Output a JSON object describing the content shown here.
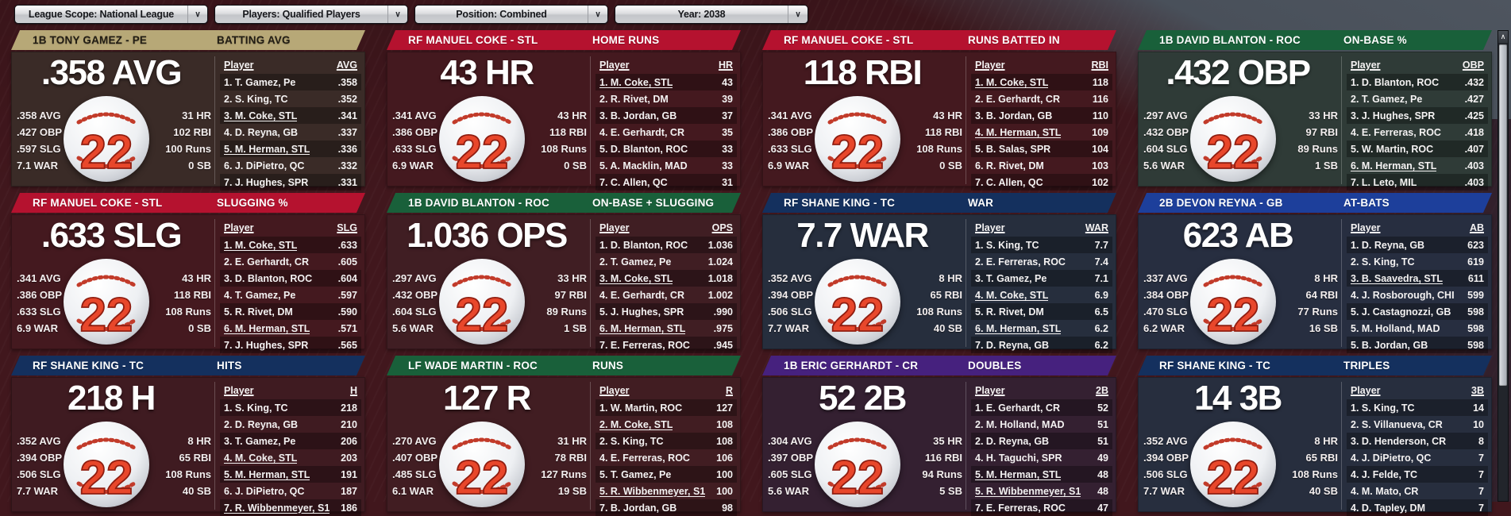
{
  "filters": [
    {
      "label": "League Scope: National League"
    },
    {
      "label": "Players: Qualified Players"
    },
    {
      "label": "Position: Combined"
    },
    {
      "label": "Year: 2038"
    }
  ],
  "icons": {
    "dropdown_chevron": "∨",
    "scroll_up": "∧"
  },
  "panels": [
    {
      "player": "1B TONY GAMEZ - PE",
      "category": "BATTING AVG",
      "big": ".358 AVG",
      "jersey": "22",
      "left_stats": [
        ".358 AVG",
        ".427 OBP",
        ".597 SLG",
        "7.1 WAR"
      ],
      "right_stats": [
        "31 HR",
        "102 RBI",
        "100 Runs",
        "0 SB"
      ],
      "colors": {
        "header": "#b7a877",
        "header_text": "#211c13",
        "body": "#3a2b27"
      },
      "table": {
        "player_header": "Player",
        "value_header": "AVG",
        "rows": [
          {
            "name": "1. T. Gamez, Pe",
            "value": ".358",
            "u": false
          },
          {
            "name": "2. S. King, TC",
            "value": ".352",
            "u": false
          },
          {
            "name": "3. M. Coke, STL",
            "value": ".341",
            "u": true
          },
          {
            "name": "4. D. Reyna, GB",
            "value": ".337",
            "u": false
          },
          {
            "name": "5. M. Herman, STL",
            "value": ".336",
            "u": true
          },
          {
            "name": "6. J. DiPietro, QC",
            "value": ".332",
            "u": false
          },
          {
            "name": "7. J. Hughes, SPR",
            "value": ".331",
            "u": false
          }
        ]
      }
    },
    {
      "player": "RF MANUEL COKE - STL",
      "category": "HOME RUNS",
      "big": "43 HR",
      "jersey": "22",
      "left_stats": [
        ".341 AVG",
        ".386 OBP",
        ".633 SLG",
        "6.9 WAR"
      ],
      "right_stats": [
        "43 HR",
        "118 RBI",
        "108 Runs",
        "0 SB"
      ],
      "colors": {
        "header": "#b5122f",
        "header_text": "#ffffff",
        "body": "#44191f"
      },
      "table": {
        "player_header": "Player",
        "value_header": "HR",
        "rows": [
          {
            "name": "1. M. Coke, STL",
            "value": "43",
            "u": true
          },
          {
            "name": "2. R. Rivet, DM",
            "value": "39",
            "u": false
          },
          {
            "name": "3. B. Jordan, GB",
            "value": "37",
            "u": false
          },
          {
            "name": "4. E. Gerhardt, CR",
            "value": "35",
            "u": false
          },
          {
            "name": "5. D. Blanton, ROC",
            "value": "33",
            "u": false
          },
          {
            "name": "5. A. Macklin, MAD",
            "value": "33",
            "u": false
          },
          {
            "name": "7. C. Allen, QC",
            "value": "31",
            "u": false
          }
        ]
      }
    },
    {
      "player": "RF MANUEL COKE - STL",
      "category": "RUNS BATTED IN",
      "big": "118 RBI",
      "jersey": "22",
      "left_stats": [
        ".341 AVG",
        ".386 OBP",
        ".633 SLG",
        "6.9 WAR"
      ],
      "right_stats": [
        "43 HR",
        "118 RBI",
        "108 Runs",
        "0 SB"
      ],
      "colors": {
        "header": "#b5122f",
        "header_text": "#ffffff",
        "body": "#44191f"
      },
      "table": {
        "player_header": "Player",
        "value_header": "RBI",
        "rows": [
          {
            "name": "1. M. Coke, STL",
            "value": "118",
            "u": true
          },
          {
            "name": "2. E. Gerhardt, CR",
            "value": "116",
            "u": false
          },
          {
            "name": "3. B. Jordan, GB",
            "value": "110",
            "u": false
          },
          {
            "name": "4. M. Herman, STL",
            "value": "109",
            "u": true
          },
          {
            "name": "5. B. Salas, SPR",
            "value": "104",
            "u": false
          },
          {
            "name": "6. R. Rivet, DM",
            "value": "103",
            "u": false
          },
          {
            "name": "7. C. Allen, QC",
            "value": "102",
            "u": false
          }
        ]
      }
    },
    {
      "player": "1B DAVID BLANTON - ROC",
      "category": "ON-BASE %",
      "big": ".432 OBP",
      "jersey": "22",
      "left_stats": [
        ".297 AVG",
        ".432 OBP",
        ".604 SLG",
        "5.6 WAR"
      ],
      "right_stats": [
        "33 HR",
        "97 RBI",
        "89 Runs",
        "1 SB"
      ],
      "colors": {
        "header": "#19603a",
        "header_text": "#ffffff",
        "body": "#2f3b37"
      },
      "table": {
        "player_header": "Player",
        "value_header": "OBP",
        "rows": [
          {
            "name": "1. D. Blanton, ROC",
            "value": ".432",
            "u": false
          },
          {
            "name": "2. T. Gamez, Pe",
            "value": ".427",
            "u": false
          },
          {
            "name": "3. J. Hughes, SPR",
            "value": ".425",
            "u": false
          },
          {
            "name": "4. E. Ferreras, ROC",
            "value": ".418",
            "u": false
          },
          {
            "name": "5. W. Martin, ROC",
            "value": ".407",
            "u": false
          },
          {
            "name": "6. M. Herman, STL",
            "value": ".403",
            "u": true
          },
          {
            "name": "7. L. Leto, MIL",
            "value": ".403",
            "u": false
          }
        ]
      }
    },
    {
      "player": "RF MANUEL COKE - STL",
      "category": "SLUGGING %",
      "big": ".633 SLG",
      "jersey": "22",
      "left_stats": [
        ".341 AVG",
        ".386 OBP",
        ".633 SLG",
        "6.9 WAR"
      ],
      "right_stats": [
        "43 HR",
        "118 RBI",
        "108 Runs",
        "0 SB"
      ],
      "colors": {
        "header": "#b5122f",
        "header_text": "#ffffff",
        "body": "#44191f"
      },
      "table": {
        "player_header": "Player",
        "value_header": "SLG",
        "rows": [
          {
            "name": "1. M. Coke, STL",
            "value": ".633",
            "u": true
          },
          {
            "name": "2. E. Gerhardt, CR",
            "value": ".605",
            "u": false
          },
          {
            "name": "3. D. Blanton, ROC",
            "value": ".604",
            "u": false
          },
          {
            "name": "4. T. Gamez, Pe",
            "value": ".597",
            "u": false
          },
          {
            "name": "5. R. Rivet, DM",
            "value": ".590",
            "u": false
          },
          {
            "name": "6. M. Herman, STL",
            "value": ".571",
            "u": true
          },
          {
            "name": "7. J. Hughes, SPR",
            "value": ".565",
            "u": false
          }
        ]
      }
    },
    {
      "player": "1B DAVID BLANTON - ROC",
      "category": "ON-BASE + SLUGGING",
      "big": "1.036 OPS",
      "jersey": "22",
      "left_stats": [
        ".297 AVG",
        ".432 OBP",
        ".604 SLG",
        "5.6 WAR"
      ],
      "right_stats": [
        "33 HR",
        "97 RBI",
        "89 Runs",
        "1 SB"
      ],
      "colors": {
        "header": "#19603a",
        "header_text": "#ffffff",
        "body": "#401e23"
      },
      "table": {
        "player_header": "Player",
        "value_header": "OPS",
        "rows": [
          {
            "name": "1. D. Blanton, ROC",
            "value": "1.036",
            "u": false
          },
          {
            "name": "2. T. Gamez, Pe",
            "value": "1.024",
            "u": false
          },
          {
            "name": "3. M. Coke, STL",
            "value": "1.018",
            "u": true
          },
          {
            "name": "4. E. Gerhardt, CR",
            "value": "1.002",
            "u": false
          },
          {
            "name": "5. J. Hughes, SPR",
            "value": ".990",
            "u": false
          },
          {
            "name": "6. M. Herman, STL",
            "value": ".975",
            "u": true
          },
          {
            "name": "7. E. Ferreras, ROC",
            "value": ".945",
            "u": false
          }
        ]
      }
    },
    {
      "player": "RF SHANE KING - TC",
      "category": "WAR",
      "big": "7.7 WAR",
      "jersey": "22",
      "left_stats": [
        ".352 AVG",
        ".394 OBP",
        ".506 SLG",
        "7.7 WAR"
      ],
      "right_stats": [
        "8 HR",
        "65 RBI",
        "108 Runs",
        "40 SB"
      ],
      "colors": {
        "header": "#14305e",
        "header_text": "#ffffff",
        "body": "#262e3d"
      },
      "table": {
        "player_header": "Player",
        "value_header": "WAR",
        "rows": [
          {
            "name": "1. S. King, TC",
            "value": "7.7",
            "u": false
          },
          {
            "name": "2. E. Ferreras, ROC",
            "value": "7.4",
            "u": false
          },
          {
            "name": "3. T. Gamez, Pe",
            "value": "7.1",
            "u": false
          },
          {
            "name": "4. M. Coke, STL",
            "value": "6.9",
            "u": true
          },
          {
            "name": "5. R. Rivet, DM",
            "value": "6.5",
            "u": false
          },
          {
            "name": "6. M. Herman, STL",
            "value": "6.2",
            "u": true
          },
          {
            "name": "7. D. Reyna, GB",
            "value": "6.2",
            "u": false
          }
        ]
      }
    },
    {
      "player": "2B DEVON REYNA - GB",
      "category": "AT-BATS",
      "big": "623 AB",
      "jersey": "22",
      "left_stats": [
        ".337 AVG",
        ".384 OBP",
        ".470 SLG",
        "6.2 WAR"
      ],
      "right_stats": [
        "8 HR",
        "64 RBI",
        "77 Runs",
        "16 SB"
      ],
      "colors": {
        "header": "#1d3f9b",
        "header_text": "#ffffff",
        "body": "#272e40"
      },
      "table": {
        "player_header": "Player",
        "value_header": "AB",
        "rows": [
          {
            "name": "1. D. Reyna, GB",
            "value": "623",
            "u": false
          },
          {
            "name": "2. S. King, TC",
            "value": "619",
            "u": false
          },
          {
            "name": "3. B. Saavedra, STL",
            "value": "611",
            "u": true
          },
          {
            "name": "4. J. Rosborough, CHI",
            "value": "599",
            "u": false
          },
          {
            "name": "5. J. Castagnozzi, GB",
            "value": "598",
            "u": false
          },
          {
            "name": "5. M. Holland, MAD",
            "value": "598",
            "u": false
          },
          {
            "name": "5. B. Jordan, GB",
            "value": "598",
            "u": false
          }
        ]
      }
    },
    {
      "player": "RF SHANE KING - TC",
      "category": "HITS",
      "big": "218 H",
      "jersey": "22",
      "left_stats": [
        ".352 AVG",
        ".394 OBP",
        ".506 SLG",
        "7.7 WAR"
      ],
      "right_stats": [
        "8 HR",
        "65 RBI",
        "108 Runs",
        "40 SB"
      ],
      "colors": {
        "header": "#14305e",
        "header_text": "#ffffff",
        "body": "#3f1b21"
      },
      "table": {
        "player_header": "Player",
        "value_header": "H",
        "rows": [
          {
            "name": "1. S. King, TC",
            "value": "218",
            "u": false
          },
          {
            "name": "2. D. Reyna, GB",
            "value": "210",
            "u": false
          },
          {
            "name": "3. T. Gamez, Pe",
            "value": "206",
            "u": false
          },
          {
            "name": "4. M. Coke, STL",
            "value": "203",
            "u": true
          },
          {
            "name": "5. M. Herman, STL",
            "value": "191",
            "u": true
          },
          {
            "name": "6. J. DiPietro, QC",
            "value": "187",
            "u": false
          },
          {
            "name": "7. R. Wibbenmeyer, S1",
            "value": "186",
            "u": true
          }
        ]
      }
    },
    {
      "player": "LF WADE MARTIN - ROC",
      "category": "RUNS",
      "big": "127 R",
      "jersey": "22",
      "left_stats": [
        ".270 AVG",
        ".407 OBP",
        ".485 SLG",
        "6.1 WAR"
      ],
      "right_stats": [
        "31 HR",
        "78 RBI",
        "127 Runs",
        "19 SB"
      ],
      "colors": {
        "header": "#19603a",
        "header_text": "#ffffff",
        "body": "#411d22"
      },
      "table": {
        "player_header": "Player",
        "value_header": "R",
        "rows": [
          {
            "name": "1. W. Martin, ROC",
            "value": "127",
            "u": false
          },
          {
            "name": "2. M. Coke, STL",
            "value": "108",
            "u": true
          },
          {
            "name": "2. S. King, TC",
            "value": "108",
            "u": false
          },
          {
            "name": "4. E. Ferreras, ROC",
            "value": "106",
            "u": false
          },
          {
            "name": "5. T. Gamez, Pe",
            "value": "100",
            "u": false
          },
          {
            "name": "5. R. Wibbenmeyer, S1",
            "value": "100",
            "u": true
          },
          {
            "name": "7. B. Jordan, GB",
            "value": "98",
            "u": false
          }
        ]
      }
    },
    {
      "player": "1B ERIC GERHARDT - CR",
      "category": "DOUBLES",
      "big": "52 2B",
      "jersey": "22",
      "left_stats": [
        ".304 AVG",
        ".397 OBP",
        ".605 SLG",
        "5.6 WAR"
      ],
      "right_stats": [
        "35 HR",
        "116 RBI",
        "94 Runs",
        "5 SB"
      ],
      "colors": {
        "header": "#46217e",
        "header_text": "#ffffff",
        "body": "#342031"
      },
      "table": {
        "player_header": "Player",
        "value_header": "2B",
        "rows": [
          {
            "name": "1. E. Gerhardt, CR",
            "value": "52",
            "u": false
          },
          {
            "name": "2. M. Holland, MAD",
            "value": "51",
            "u": false
          },
          {
            "name": "2. D. Reyna, GB",
            "value": "51",
            "u": false
          },
          {
            "name": "4. H. Taguchi, SPR",
            "value": "49",
            "u": false
          },
          {
            "name": "5. M. Herman, STL",
            "value": "48",
            "u": true
          },
          {
            "name": "5. R. Wibbenmeyer, S1",
            "value": "48",
            "u": true
          },
          {
            "name": "7. E. Ferreras, ROC",
            "value": "47",
            "u": false
          }
        ]
      }
    },
    {
      "player": "RF SHANE KING - TC",
      "category": "TRIPLES",
      "big": "14 3B",
      "jersey": "22",
      "left_stats": [
        ".352 AVG",
        ".394 OBP",
        ".506 SLG",
        "7.7 WAR"
      ],
      "right_stats": [
        "8 HR",
        "65 RBI",
        "108 Runs",
        "40 SB"
      ],
      "colors": {
        "header": "#14305e",
        "header_text": "#ffffff",
        "body": "#272e3e"
      },
      "table": {
        "player_header": "Player",
        "value_header": "3B",
        "rows": [
          {
            "name": "1. S. King, TC",
            "value": "14",
            "u": false
          },
          {
            "name": "2. S. Villanueva, CR",
            "value": "10",
            "u": false
          },
          {
            "name": "3. D. Henderson, CR",
            "value": "8",
            "u": false
          },
          {
            "name": "4. J. DiPietro, QC",
            "value": "7",
            "u": false
          },
          {
            "name": "4. J. Felde, TC",
            "value": "7",
            "u": false
          },
          {
            "name": "4. M. Mato, CR",
            "value": "7",
            "u": false
          },
          {
            "name": "4. D. Tapley, DM",
            "value": "7",
            "u": false
          }
        ]
      }
    }
  ]
}
